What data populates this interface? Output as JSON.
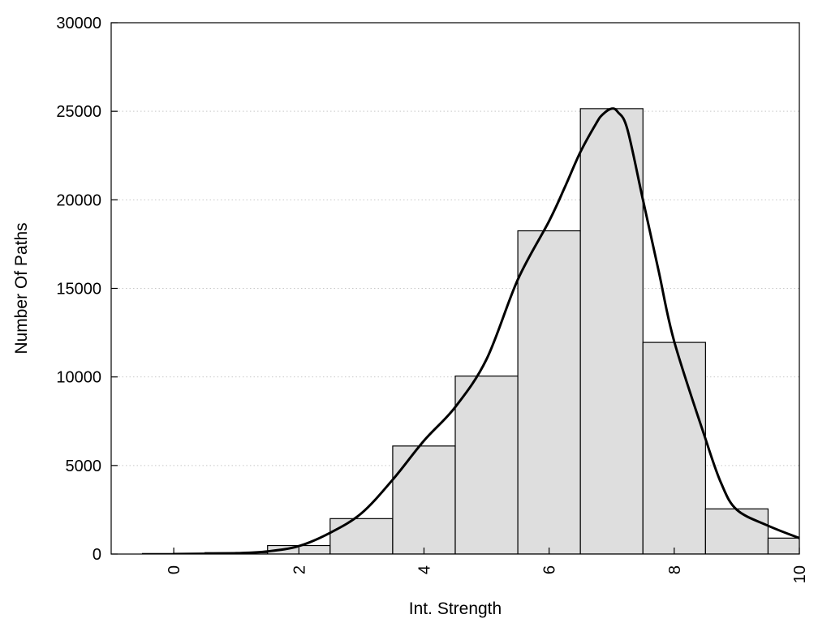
{
  "chart_data": {
    "type": "bar",
    "title": "",
    "xlabel": "Int. Strength",
    "ylabel": "Number Of Paths",
    "xlim": [
      -1,
      10
    ],
    "ylim": [
      0,
      30000
    ],
    "x_ticks": [
      0,
      2,
      4,
      6,
      8,
      10
    ],
    "y_ticks": [
      0,
      5000,
      10000,
      15000,
      20000,
      25000,
      30000
    ],
    "grid": "horizontal-dotted",
    "bar_width": 1,
    "bars": {
      "x": [
        0,
        1,
        2,
        3,
        4,
        5,
        6,
        7,
        8,
        9,
        10
      ],
      "values": [
        30,
        80,
        480,
        2000,
        6100,
        10050,
        18250,
        25150,
        11950,
        2550,
        900
      ]
    },
    "curve": {
      "x": [
        0,
        0.5,
        1,
        1.5,
        2,
        2.5,
        3,
        3.5,
        4,
        4.5,
        5,
        5.5,
        6,
        6.25,
        6.5,
        6.75,
        6.85,
        7,
        7.1,
        7.25,
        7.5,
        7.75,
        8,
        8.5,
        8.75,
        9,
        9.5,
        10
      ],
      "values": [
        0,
        20,
        50,
        150,
        450,
        1200,
        2300,
        4200,
        6400,
        8300,
        11000,
        15500,
        18800,
        20700,
        22700,
        24300,
        24800,
        25150,
        24950,
        24000,
        20000,
        16000,
        12000,
        6500,
        4000,
        2500,
        1600,
        900
      ]
    }
  }
}
